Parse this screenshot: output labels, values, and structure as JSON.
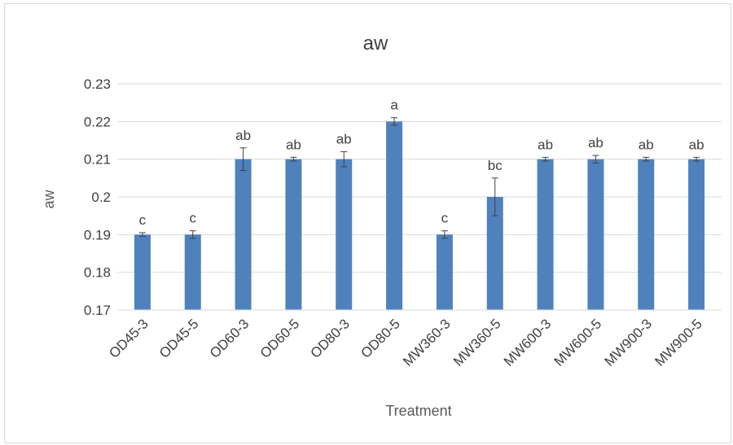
{
  "chart_data": {
    "type": "bar",
    "title": "aw",
    "xlabel": "Treatment",
    "ylabel": "aw",
    "categories": [
      "OD45-3",
      "OD45-5",
      "OD60-3",
      "OD60-5",
      "OD80-3",
      "OD80-5",
      "MW360-3",
      "MW360-5",
      "MW600-3",
      "MW600-5",
      "MW900-3",
      "MW900-5"
    ],
    "values": [
      0.19,
      0.19,
      0.21,
      0.21,
      0.21,
      0.22,
      0.19,
      0.2,
      0.21,
      0.21,
      0.21,
      0.21
    ],
    "error": [
      0.0005,
      0.001,
      0.003,
      0.0005,
      0.002,
      0.001,
      0.001,
      0.005,
      0.0005,
      0.001,
      0.0005,
      0.0005
    ],
    "significance_labels": [
      "c",
      "c",
      "ab",
      "ab",
      "ab",
      "a",
      "c",
      "bc",
      "ab",
      "ab",
      "ab",
      "ab"
    ],
    "ylim": [
      0.17,
      0.23
    ],
    "yticks": [
      "0.17",
      "0.18",
      "0.19",
      "0.2",
      "0.21",
      "0.22",
      "0.23"
    ],
    "grid": true,
    "bar_color": "#4f81bd",
    "grid_color": "#d9d9d9"
  }
}
